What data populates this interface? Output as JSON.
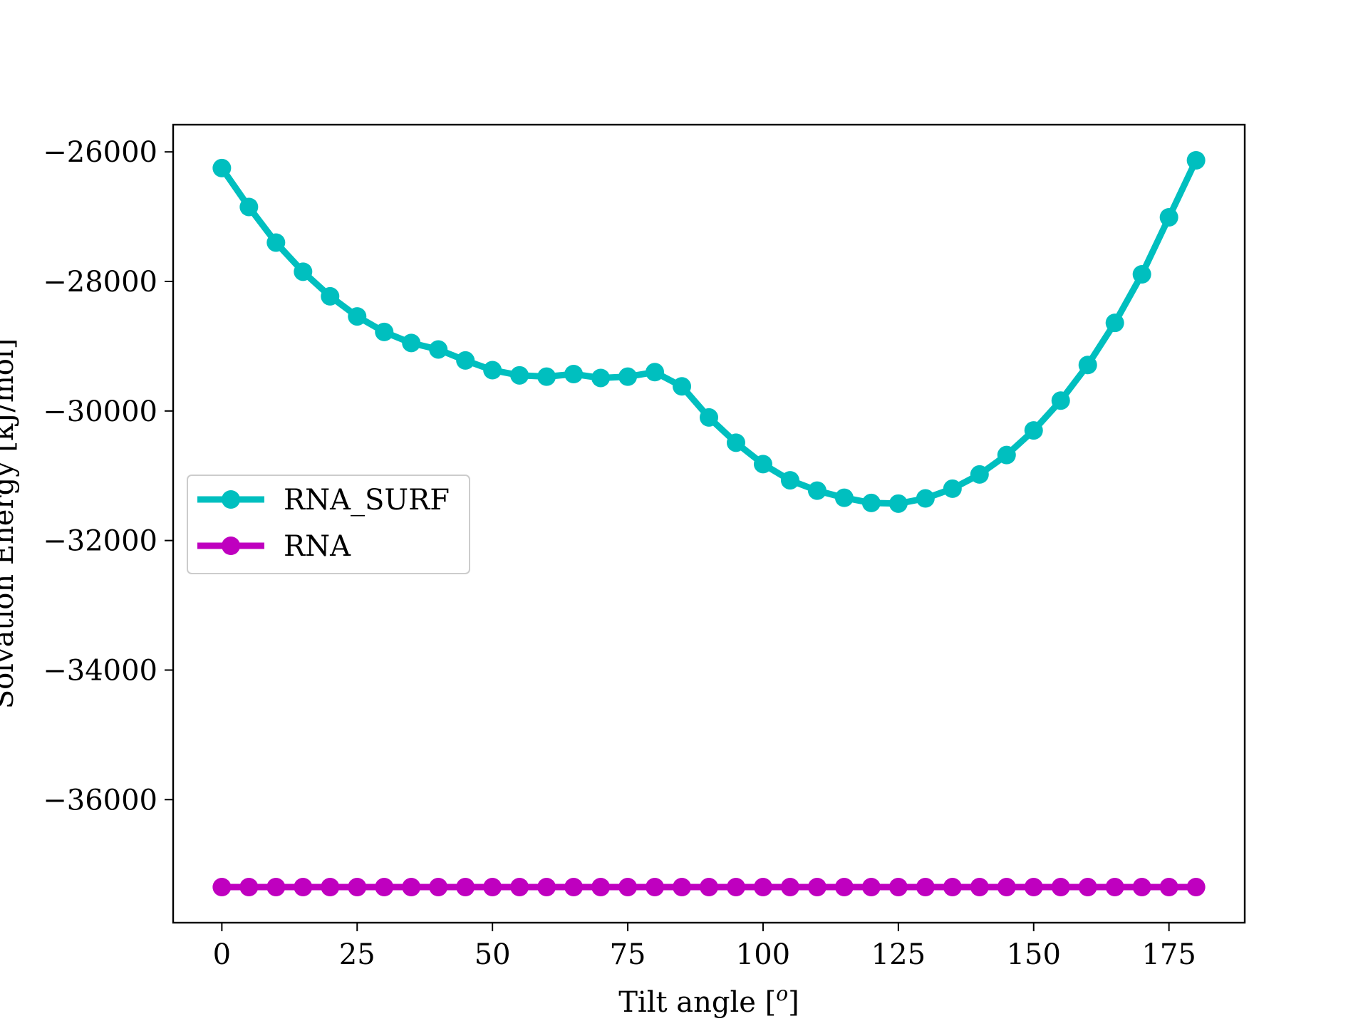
{
  "chart_data": {
    "type": "line",
    "xlabel": "Tilt angle [",
    "xlabel_sup": "o",
    "xlabel_end": "]",
    "ylabel": "Solvation Energy [kJ/mol]",
    "xlim": [
      -9,
      189
    ],
    "ylim": [
      -37900,
      -25580
    ],
    "x_ticks": [
      0,
      25,
      50,
      75,
      100,
      125,
      150,
      175
    ],
    "y_ticks": [
      -26000,
      -28000,
      -30000,
      -32000,
      -34000,
      -36000
    ],
    "y_tick_labels": [
      "−26000",
      "−28000",
      "−30000",
      "−32000",
      "−34000",
      "−36000"
    ],
    "x_tick_labels": [
      "0",
      "25",
      "50",
      "75",
      "100",
      "125",
      "150",
      "175"
    ],
    "legend_position": "center-left",
    "x": [
      0,
      5,
      10,
      15,
      20,
      25,
      30,
      35,
      40,
      45,
      50,
      55,
      60,
      65,
      70,
      75,
      80,
      85,
      90,
      95,
      100,
      105,
      110,
      115,
      120,
      125,
      130,
      135,
      140,
      145,
      150,
      155,
      160,
      165,
      170,
      175,
      180
    ],
    "series": [
      {
        "name": "RNA_SURF",
        "color": "#00bfbf",
        "values": [
          -26250,
          -26850,
          -27400,
          -27850,
          -28230,
          -28540,
          -28780,
          -28950,
          -29050,
          -29220,
          -29370,
          -29450,
          -29470,
          -29430,
          -29490,
          -29470,
          -29400,
          -29620,
          -30100,
          -30490,
          -30820,
          -31070,
          -31230,
          -31340,
          -31420,
          -31430,
          -31350,
          -31200,
          -30980,
          -30680,
          -30300,
          -29840,
          -29290,
          -28640,
          -27890,
          -27010,
          -26130
        ]
      },
      {
        "name": "RNA",
        "color": "#bf00bf",
        "values": [
          -37350,
          -37350,
          -37350,
          -37350,
          -37350,
          -37350,
          -37350,
          -37350,
          -37350,
          -37350,
          -37350,
          -37350,
          -37350,
          -37350,
          -37350,
          -37350,
          -37350,
          -37350,
          -37350,
          -37350,
          -37350,
          -37350,
          -37350,
          -37350,
          -37350,
          -37350,
          -37350,
          -37350,
          -37350,
          -37350,
          -37350,
          -37350,
          -37350,
          -37350,
          -37350,
          -37350,
          -37350
        ]
      }
    ]
  }
}
